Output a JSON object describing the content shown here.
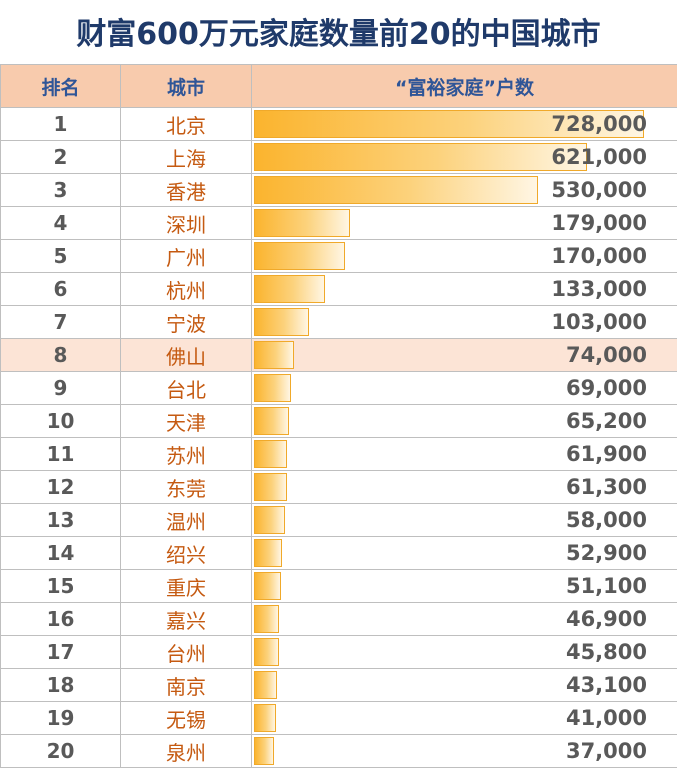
{
  "title": "财富600万元家庭数量前20的中国城市",
  "headers": {
    "rank": "排名",
    "city": "城市",
    "value": "“富裕家庭”户数"
  },
  "colors": {
    "header_bg": "#f8cbad",
    "header_text": "#2f5597",
    "title_text": "#1f3a6a",
    "city_text": "#c55a11",
    "value_text": "#595959",
    "bar_fill": "#fbb42e",
    "highlight_row": "#fce4d6"
  },
  "chart_data": {
    "type": "bar",
    "orientation": "horizontal",
    "title": "财富600万元家庭数量前20的中国城市",
    "xlim": [
      0,
      728000
    ],
    "rows": [
      {
        "rank": "1",
        "city": "北京",
        "value": 728000,
        "label": "728,000"
      },
      {
        "rank": "2",
        "city": "上海",
        "value": 621000,
        "label": "621,000"
      },
      {
        "rank": "3",
        "city": "香港",
        "value": 530000,
        "label": "530,000"
      },
      {
        "rank": "4",
        "city": "深圳",
        "value": 179000,
        "label": "179,000"
      },
      {
        "rank": "5",
        "city": "广州",
        "value": 170000,
        "label": "170,000"
      },
      {
        "rank": "6",
        "city": "杭州",
        "value": 133000,
        "label": "133,000"
      },
      {
        "rank": "7",
        "city": "宁波",
        "value": 103000,
        "label": "103,000"
      },
      {
        "rank": "8",
        "city": "佛山",
        "value": 74000,
        "label": "74,000",
        "highlight": true
      },
      {
        "rank": "9",
        "city": "台北",
        "value": 69000,
        "label": "69,000"
      },
      {
        "rank": "10",
        "city": "天津",
        "value": 65200,
        "label": "65,200"
      },
      {
        "rank": "11",
        "city": "苏州",
        "value": 61900,
        "label": "61,900"
      },
      {
        "rank": "12",
        "city": "东莞",
        "value": 61300,
        "label": "61,300"
      },
      {
        "rank": "13",
        "city": "温州",
        "value": 58000,
        "label": "58,000"
      },
      {
        "rank": "14",
        "city": "绍兴",
        "value": 52900,
        "label": "52,900"
      },
      {
        "rank": "15",
        "city": "重庆",
        "value": 51100,
        "label": "51,100"
      },
      {
        "rank": "16",
        "city": "嘉兴",
        "value": 46900,
        "label": "46,900"
      },
      {
        "rank": "17",
        "city": "台州",
        "value": 45800,
        "label": "45,800"
      },
      {
        "rank": "18",
        "city": "南京",
        "value": 43100,
        "label": "43,100"
      },
      {
        "rank": "19",
        "city": "无锡",
        "value": 41000,
        "label": "41,000"
      },
      {
        "rank": "20",
        "city": "泉州",
        "value": 37000,
        "label": "37,000"
      }
    ]
  }
}
